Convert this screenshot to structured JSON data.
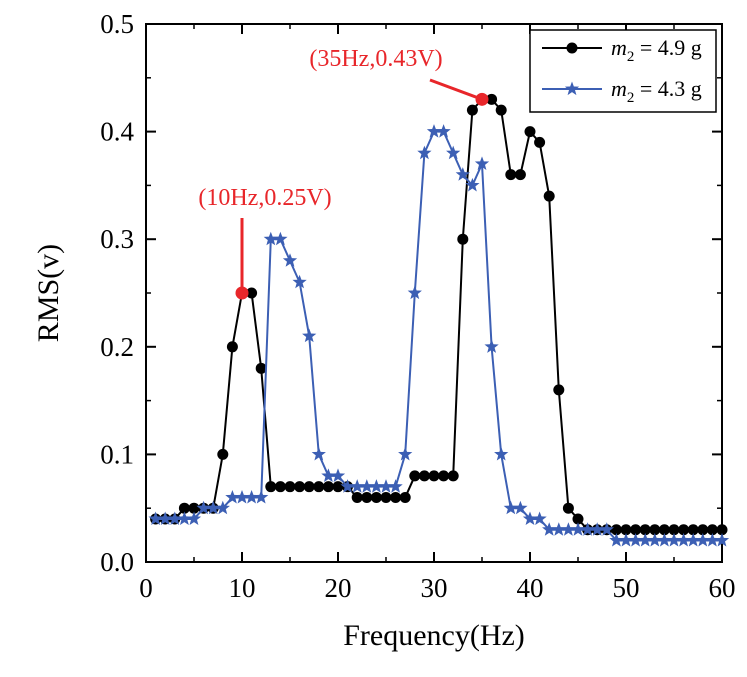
{
  "chart_data": {
    "type": "line",
    "title": "",
    "xlabel": "Frequency(Hz)",
    "ylabel": "RMS(v)",
    "xlim": [
      0,
      60
    ],
    "ylim": [
      0,
      0.5
    ],
    "xticks": [
      0,
      10,
      20,
      30,
      40,
      50,
      60
    ],
    "yticks": [
      0.0,
      0.1,
      0.2,
      0.3,
      0.4,
      0.5
    ],
    "xtick_labels": [
      "0",
      "10",
      "20",
      "30",
      "40",
      "50",
      "60"
    ],
    "ytick_labels": [
      "0.0",
      "0.1",
      "0.2",
      "0.3",
      "0.4",
      "0.5"
    ],
    "grid": false,
    "legend_position": "top-right",
    "series": [
      {
        "name_italic": "m",
        "name_sub": "2",
        "name_rest": " = 4.9 g",
        "color": "#000000",
        "marker": "circle",
        "x": [
          1,
          2,
          3,
          4,
          5,
          6,
          7,
          8,
          9,
          10,
          11,
          12,
          13,
          14,
          15,
          16,
          17,
          18,
          19,
          20,
          21,
          22,
          23,
          24,
          25,
          26,
          27,
          28,
          29,
          30,
          31,
          32,
          33,
          34,
          35,
          36,
          37,
          38,
          39,
          40,
          41,
          42,
          43,
          44,
          45,
          46,
          47,
          48,
          49,
          50,
          51,
          52,
          53,
          54,
          55,
          56,
          57,
          58,
          59,
          60
        ],
        "y": [
          0.04,
          0.04,
          0.04,
          0.05,
          0.05,
          0.05,
          0.05,
          0.1,
          0.2,
          0.25,
          0.25,
          0.18,
          0.07,
          0.07,
          0.07,
          0.07,
          0.07,
          0.07,
          0.07,
          0.07,
          0.07,
          0.06,
          0.06,
          0.06,
          0.06,
          0.06,
          0.06,
          0.08,
          0.08,
          0.08,
          0.08,
          0.08,
          0.3,
          0.42,
          0.43,
          0.43,
          0.42,
          0.36,
          0.36,
          0.4,
          0.39,
          0.34,
          0.16,
          0.05,
          0.04,
          0.03,
          0.03,
          0.03,
          0.03,
          0.03,
          0.03,
          0.03,
          0.03,
          0.03,
          0.03,
          0.03,
          0.03,
          0.03,
          0.03,
          0.03
        ]
      },
      {
        "name_italic": "m",
        "name_sub": "2",
        "name_rest": " = 4.3 g",
        "color": "#3c5fb4",
        "marker": "star",
        "x": [
          1,
          2,
          3,
          4,
          5,
          6,
          7,
          8,
          9,
          10,
          11,
          12,
          13,
          14,
          15,
          16,
          17,
          18,
          19,
          20,
          21,
          22,
          23,
          24,
          25,
          26,
          27,
          28,
          29,
          30,
          31,
          32,
          33,
          34,
          35,
          36,
          37,
          38,
          39,
          40,
          41,
          42,
          43,
          44,
          45,
          46,
          47,
          48,
          49,
          50,
          51,
          52,
          53,
          54,
          55,
          56,
          57,
          58,
          59,
          60
        ],
        "y": [
          0.04,
          0.04,
          0.04,
          0.04,
          0.04,
          0.05,
          0.05,
          0.05,
          0.06,
          0.06,
          0.06,
          0.06,
          0.3,
          0.3,
          0.28,
          0.26,
          0.21,
          0.1,
          0.08,
          0.08,
          0.07,
          0.07,
          0.07,
          0.07,
          0.07,
          0.07,
          0.1,
          0.25,
          0.38,
          0.4,
          0.4,
          0.38,
          0.36,
          0.35,
          0.37,
          0.2,
          0.1,
          0.05,
          0.05,
          0.04,
          0.04,
          0.03,
          0.03,
          0.03,
          0.03,
          0.03,
          0.03,
          0.03,
          0.02,
          0.02,
          0.02,
          0.02,
          0.02,
          0.02,
          0.02,
          0.02,
          0.02,
          0.02,
          0.02,
          0.02
        ]
      }
    ],
    "annotations": [
      {
        "text": "(10Hz,0.25V)",
        "point": [
          10,
          0.25
        ],
        "color": "#e8262a"
      },
      {
        "text": "(35Hz,0.43V)",
        "point": [
          35,
          0.43
        ],
        "color": "#e8262a"
      }
    ]
  }
}
